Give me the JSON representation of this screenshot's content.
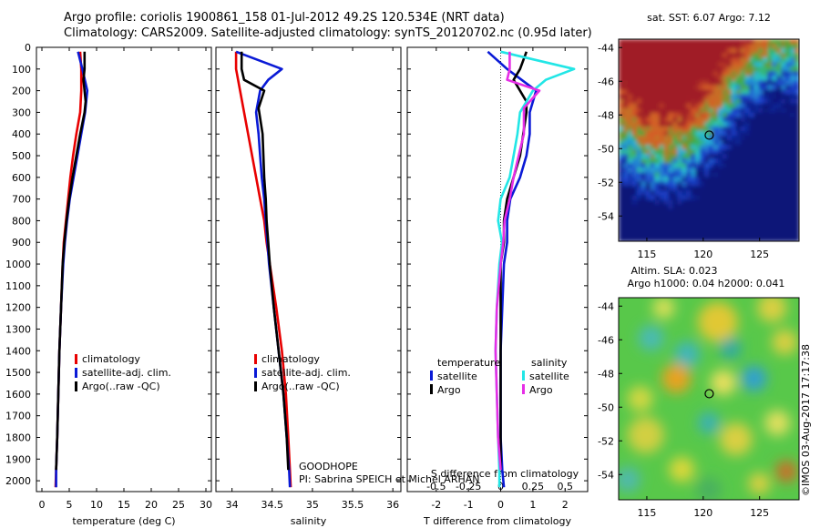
{
  "header": {
    "title_line1": "Argo profile: coriolis 1900861_158 01-Jul-2012 49.2S 120.534E (NRT data)",
    "title_line2": "Climatology: CARS2009. Satellite-adjusted climatology: synTS_20120702.nc (0.95d later)"
  },
  "credit": "©IMOS 03-Aug-2017 17:17:38",
  "colors": {
    "climatology": "#e80000",
    "satellite": "#0a1ad6",
    "argo": "#000000",
    "salinity_satellite": "#22e6e6",
    "salinity_argo": "#e62ee6"
  },
  "depth_axis": {
    "ylim": [
      0,
      2050
    ],
    "ticks": [
      0,
      100,
      200,
      300,
      400,
      500,
      600,
      700,
      800,
      900,
      1000,
      1100,
      1200,
      1300,
      1400,
      1500,
      1600,
      1700,
      1800,
      1900,
      2000
    ]
  },
  "chart_data": [
    {
      "type": "line",
      "id": "temperature",
      "xlabel": "temperature (deg C)",
      "xlim": [
        -1,
        31
      ],
      "xticks": [
        0,
        5,
        10,
        15,
        20,
        25,
        30
      ],
      "legend": {
        "placement": "lower-center",
        "entries": [
          "climatology",
          "satellite-adj. clim.",
          "Argo(..raw -QC)"
        ]
      },
      "series": [
        {
          "name": "climatology",
          "color": "#e80000",
          "points": [
            [
              7.0,
              20
            ],
            [
              7.2,
              100
            ],
            [
              7.2,
              200
            ],
            [
              7.0,
              300
            ],
            [
              6.3,
              400
            ],
            [
              5.7,
              500
            ],
            [
              5.2,
              600
            ],
            [
              4.8,
              700
            ],
            [
              4.4,
              800
            ],
            [
              4.0,
              900
            ],
            [
              3.8,
              1000
            ],
            [
              3.5,
              1200
            ],
            [
              3.2,
              1400
            ],
            [
              3.0,
              1600
            ],
            [
              2.8,
              1800
            ],
            [
              2.6,
              1950
            ],
            [
              2.5,
              2030
            ]
          ]
        },
        {
          "name": "satellite-adj. clim.",
          "color": "#0a1ad6",
          "points": [
            [
              6.6,
              20
            ],
            [
              7.4,
              100
            ],
            [
              8.3,
              200
            ],
            [
              7.9,
              300
            ],
            [
              7.2,
              400
            ],
            [
              6.5,
              500
            ],
            [
              5.8,
              600
            ],
            [
              5.1,
              700
            ],
            [
              4.6,
              800
            ],
            [
              4.2,
              900
            ],
            [
              3.9,
              1000
            ],
            [
              3.5,
              1200
            ],
            [
              3.2,
              1400
            ],
            [
              3.0,
              1600
            ],
            [
              2.8,
              1800
            ],
            [
              2.6,
              1950
            ],
            [
              2.6,
              2030
            ]
          ]
        },
        {
          "name": "Argo(..raw -QC)",
          "color": "#000000",
          "points": [
            [
              7.8,
              20
            ],
            [
              7.8,
              100
            ],
            [
              7.6,
              150
            ],
            [
              8.0,
              250
            ],
            [
              7.8,
              300
            ],
            [
              7.0,
              400
            ],
            [
              6.3,
              500
            ],
            [
              5.6,
              600
            ],
            [
              5.0,
              700
            ],
            [
              4.5,
              800
            ],
            [
              4.1,
              900
            ],
            [
              3.8,
              1000
            ],
            [
              3.5,
              1200
            ],
            [
              3.2,
              1400
            ],
            [
              3.0,
              1600
            ],
            [
              2.8,
              1800
            ],
            [
              2.6,
              1950
            ]
          ]
        }
      ]
    },
    {
      "type": "line",
      "id": "salinity",
      "xlabel": "salinity",
      "xlim": [
        33.8,
        36.1
      ],
      "xticks": [
        34,
        34.5,
        35,
        35.5,
        36
      ],
      "legend": {
        "placement": "lower-center",
        "entries": [
          "climatology",
          "satellite-adj. clim.",
          "Argo(..raw -QC)"
        ]
      },
      "annotation": {
        "line1": "GOODHOPE",
        "line2": "PI: Sabrina SPEICH et Michel ARHAN"
      },
      "series": [
        {
          "name": "climatology",
          "color": "#e80000",
          "points": [
            [
              34.05,
              20
            ],
            [
              34.05,
              100
            ],
            [
              34.1,
              200
            ],
            [
              34.15,
              300
            ],
            [
              34.2,
              400
            ],
            [
              34.25,
              500
            ],
            [
              34.3,
              600
            ],
            [
              34.35,
              700
            ],
            [
              34.4,
              800
            ],
            [
              34.43,
              900
            ],
            [
              34.47,
              1000
            ],
            [
              34.55,
              1200
            ],
            [
              34.62,
              1400
            ],
            [
              34.67,
              1600
            ],
            [
              34.7,
              1800
            ],
            [
              34.72,
              1950
            ],
            [
              34.73,
              2030
            ]
          ]
        },
        {
          "name": "satellite-adj. clim.",
          "color": "#0a1ad6",
          "points": [
            [
              34.05,
              20
            ],
            [
              34.62,
              100
            ],
            [
              34.45,
              150
            ],
            [
              34.35,
              200
            ],
            [
              34.3,
              300
            ],
            [
              34.33,
              400
            ],
            [
              34.35,
              500
            ],
            [
              34.37,
              600
            ],
            [
              34.4,
              700
            ],
            [
              34.42,
              800
            ],
            [
              34.44,
              900
            ],
            [
              34.46,
              1000
            ],
            [
              34.52,
              1200
            ],
            [
              34.58,
              1400
            ],
            [
              34.64,
              1600
            ],
            [
              34.68,
              1800
            ],
            [
              34.71,
              1950
            ],
            [
              34.72,
              2030
            ]
          ]
        },
        {
          "name": "Argo(..raw -QC)",
          "color": "#000000",
          "points": [
            [
              34.12,
              20
            ],
            [
              34.12,
              100
            ],
            [
              34.15,
              150
            ],
            [
              34.4,
              200
            ],
            [
              34.33,
              280
            ],
            [
              34.38,
              400
            ],
            [
              34.39,
              500
            ],
            [
              34.4,
              600
            ],
            [
              34.42,
              700
            ],
            [
              34.43,
              800
            ],
            [
              34.45,
              900
            ],
            [
              34.47,
              1000
            ],
            [
              34.52,
              1200
            ],
            [
              34.58,
              1400
            ],
            [
              34.64,
              1600
            ],
            [
              34.68,
              1800
            ],
            [
              34.7,
              1950
            ]
          ]
        }
      ]
    },
    {
      "type": "line",
      "id": "differences",
      "xlabel": "T difference from climatology",
      "xlim": [
        -2.9,
        2.7
      ],
      "xticks": [
        -2,
        -1,
        0,
        1,
        2
      ],
      "top_xlabel": "S difference from climatology",
      "top_xlim": [
        -0.725,
        0.675
      ],
      "top_xticks": [
        -0.5,
        -0.25,
        0,
        0.25,
        0.5
      ],
      "top_xtick_labels": [
        "-0.5",
        "-0.25",
        "0",
        "0.25",
        "0.5"
      ],
      "legend": {
        "placement": "lower-center",
        "temperature_title": "temperature",
        "salinity_title": "salinity",
        "temperature_entries": [
          "satellite",
          "Argo"
        ],
        "salinity_entries": [
          "satellite",
          "Argo"
        ]
      },
      "series": [
        {
          "name": "temperature satellite",
          "axis": "T",
          "color": "#0a1ad6",
          "points": [
            [
              -0.4,
              20
            ],
            [
              0.2,
              100
            ],
            [
              1.1,
              200
            ],
            [
              0.9,
              300
            ],
            [
              0.9,
              400
            ],
            [
              0.8,
              500
            ],
            [
              0.6,
              600
            ],
            [
              0.3,
              700
            ],
            [
              0.2,
              800
            ],
            [
              0.2,
              900
            ],
            [
              0.1,
              1000
            ],
            [
              0.05,
              1200
            ],
            [
              0.0,
              1400
            ],
            [
              0.0,
              1600
            ],
            [
              0.0,
              1800
            ],
            [
              0.05,
              1950
            ],
            [
              0.1,
              2030
            ]
          ]
        },
        {
          "name": "temperature Argo",
          "axis": "T",
          "color": "#000000",
          "points": [
            [
              0.8,
              20
            ],
            [
              0.6,
              100
            ],
            [
              0.4,
              150
            ],
            [
              0.8,
              250
            ],
            [
              0.8,
              300
            ],
            [
              0.7,
              400
            ],
            [
              0.6,
              500
            ],
            [
              0.4,
              600
            ],
            [
              0.2,
              700
            ],
            [
              0.1,
              800
            ],
            [
              0.1,
              900
            ],
            [
              0.0,
              1000
            ],
            [
              0.0,
              1200
            ],
            [
              0.0,
              1400
            ],
            [
              0.0,
              1600
            ],
            [
              0.0,
              1800
            ],
            [
              0.0,
              1950
            ]
          ]
        },
        {
          "name": "salinity satellite",
          "axis": "S",
          "color": "#22e6e6",
          "points": [
            [
              0.0,
              20
            ],
            [
              0.57,
              100
            ],
            [
              0.35,
              150
            ],
            [
              0.25,
              200
            ],
            [
              0.15,
              300
            ],
            [
              0.13,
              400
            ],
            [
              0.1,
              500
            ],
            [
              0.07,
              600
            ],
            [
              0.0,
              700
            ],
            [
              -0.02,
              800
            ],
            [
              0.01,
              900
            ],
            [
              -0.01,
              1000
            ],
            [
              -0.03,
              1200
            ],
            [
              -0.04,
              1400
            ],
            [
              -0.03,
              1600
            ],
            [
              -0.02,
              1800
            ],
            [
              -0.01,
              1950
            ],
            [
              -0.01,
              2030
            ]
          ]
        },
        {
          "name": "salinity Argo",
          "axis": "S",
          "color": "#e62ee6",
          "points": [
            [
              0.07,
              20
            ],
            [
              0.07,
              100
            ],
            [
              0.05,
              150
            ],
            [
              0.3,
              200
            ],
            [
              0.18,
              280
            ],
            [
              0.18,
              400
            ],
            [
              0.14,
              500
            ],
            [
              0.1,
              600
            ],
            [
              0.07,
              700
            ],
            [
              0.03,
              800
            ],
            [
              0.02,
              900
            ],
            [
              0.0,
              1000
            ],
            [
              -0.03,
              1200
            ],
            [
              -0.04,
              1400
            ],
            [
              -0.03,
              1600
            ],
            [
              -0.02,
              1800
            ],
            [
              0.0,
              1950
            ]
          ]
        }
      ]
    },
    {
      "type": "heatmap",
      "id": "sst-map",
      "title": "sat. SST: 6.07 Argo: 7.12",
      "xlim": [
        112.5,
        128.5
      ],
      "ylim": [
        -55.5,
        -43.5
      ],
      "xticks": [
        115,
        120,
        125
      ],
      "yticks": [
        -44,
        -46,
        -48,
        -50,
        -52,
        -54
      ],
      "ytick_labels": [
        "-44",
        "-46",
        "-48",
        "-50",
        "-52",
        "-54"
      ],
      "marker": {
        "lon": 120.534,
        "lat": -49.2
      }
    },
    {
      "type": "heatmap",
      "id": "sla-map",
      "title_line1": "Altim. SLA: 0.023",
      "title_line2": "Argo h1000: 0.04 h2000: 0.041",
      "xlim": [
        112.5,
        128.5
      ],
      "ylim": [
        -55.5,
        -43.5
      ],
      "xticks": [
        115,
        120,
        125
      ],
      "yticks": [
        -44,
        -46,
        -48,
        -50,
        -52,
        -54
      ],
      "ytick_labels": [
        "-44",
        "-46",
        "-48",
        "-50",
        "-52",
        "-54"
      ],
      "marker": {
        "lon": 120.534,
        "lat": -49.2
      }
    }
  ]
}
